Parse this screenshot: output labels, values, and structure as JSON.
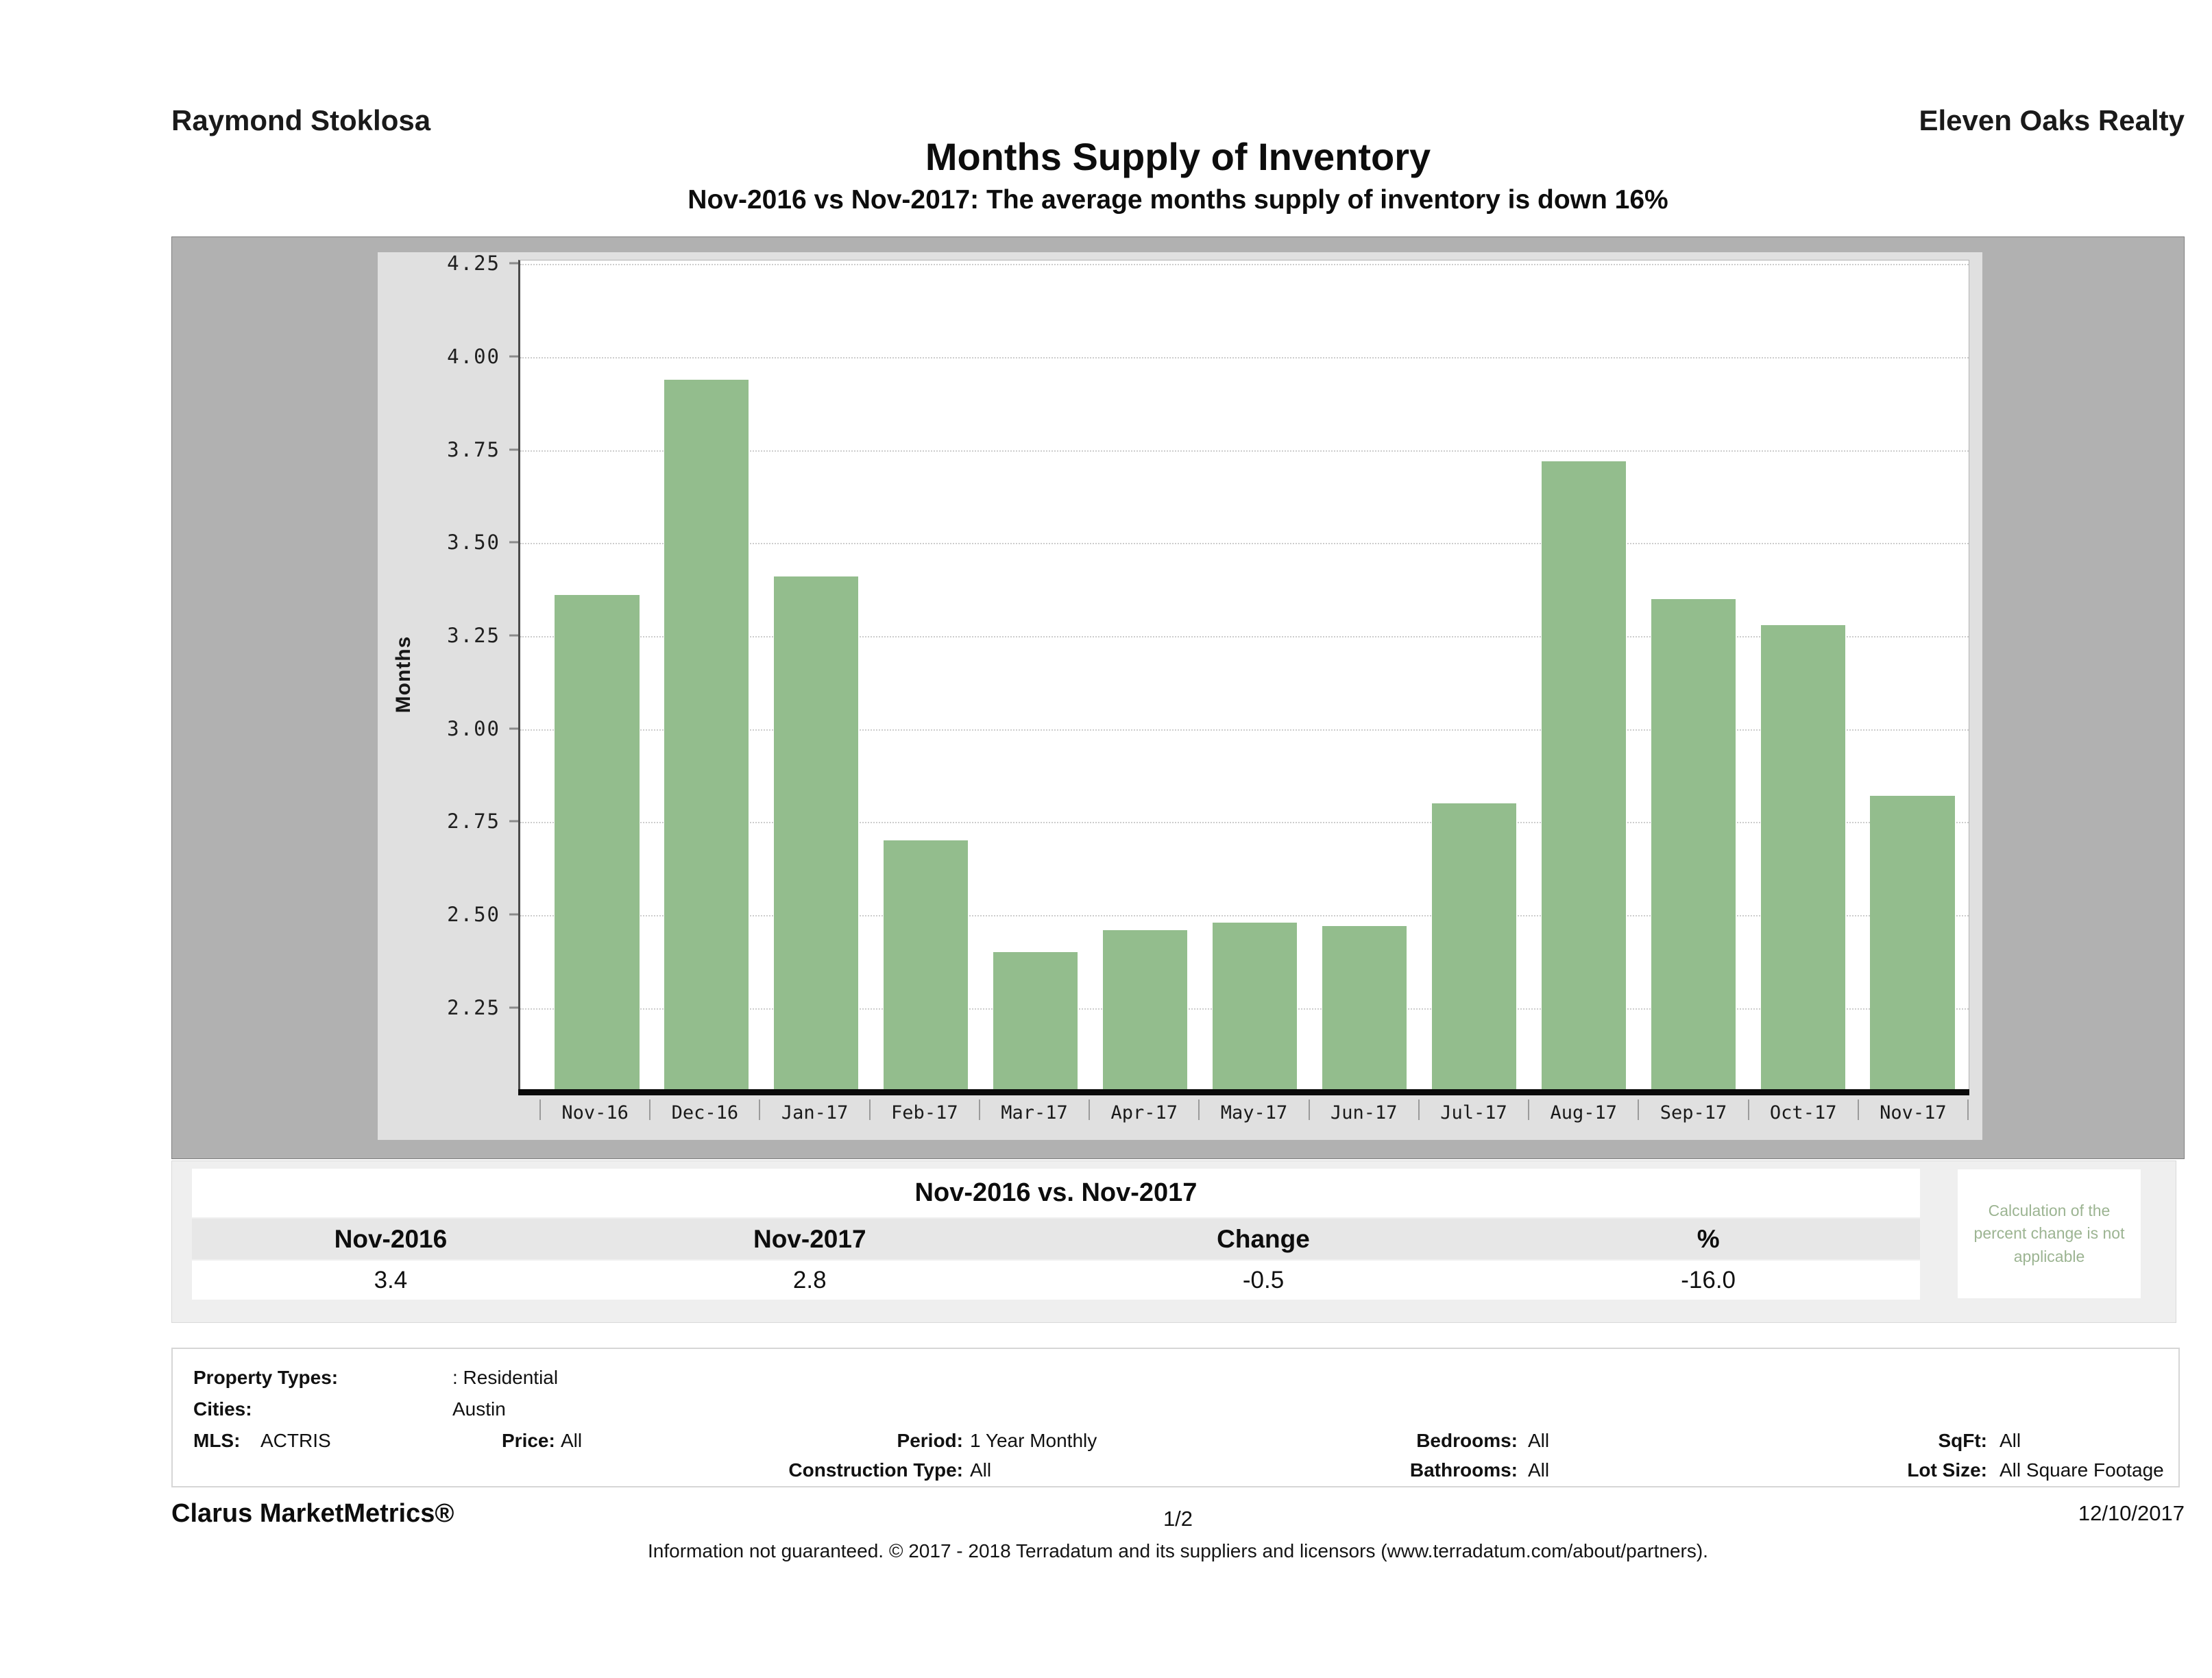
{
  "header": {
    "agent_name": "Raymond Stoklosa",
    "company_name": "Eleven Oaks Realty",
    "title": "Months Supply of Inventory",
    "subtitle": "Nov-2016 vs Nov-2017: The average months supply of inventory is down 16%"
  },
  "chart_data": {
    "type": "bar",
    "title": "Months Supply of Inventory",
    "xlabel": "",
    "ylabel": "Months",
    "categories": [
      "Nov-16",
      "Dec-16",
      "Jan-17",
      "Feb-17",
      "Mar-17",
      "Apr-17",
      "May-17",
      "Jun-17",
      "Jul-17",
      "Aug-17",
      "Sep-17",
      "Oct-17",
      "Nov-17"
    ],
    "values": [
      3.36,
      3.94,
      3.41,
      2.7,
      2.4,
      2.46,
      2.48,
      2.47,
      2.8,
      3.72,
      3.35,
      3.28,
      2.82
    ],
    "ylim": [
      2.03,
      4.26
    ],
    "yticks": [
      "4.25",
      "4.00",
      "3.75",
      "3.50",
      "3.25",
      "3.00",
      "2.75",
      "2.50",
      "2.25"
    ],
    "grid": true,
    "legend": "none",
    "bar_color": "#93bd8d"
  },
  "comparison_table": {
    "title": "Nov-2016 vs. Nov-2017",
    "columns": [
      "Nov-2016",
      "Nov-2017",
      "Change",
      "%"
    ],
    "values": [
      "3.4",
      "2.8",
      "-0.5",
      "-16.0"
    ],
    "note": "Calculation of the percent change is not applicable"
  },
  "criteria": {
    "property_types_label": "Property Types:",
    "property_types_value": ": Residential",
    "cities_label": "Cities:",
    "cities_value": "Austin",
    "mls_label": "MLS:",
    "mls_value": "ACTRIS",
    "price_label": "Price:",
    "price_value": "All",
    "period_label": "Period:",
    "period_value": "1 Year Monthly",
    "construction_label": "Construction Type:",
    "construction_value": "All",
    "bedrooms_label": "Bedrooms:",
    "bedrooms_value": "All",
    "bathrooms_label": "Bathrooms:",
    "bathrooms_value": "All",
    "sqft_label": "SqFt:",
    "sqft_value": "All",
    "lot_size_label": "Lot Size:",
    "lot_size_value": "All Square Footage"
  },
  "footer": {
    "brand": "Clarus MarketMetrics®",
    "page": "1/2",
    "date": "12/10/2017",
    "disclaimer": "Information not guaranteed. © 2017 - 2018 Terradatum and its suppliers and licensors (www.terradatum.com/about/partners)."
  }
}
